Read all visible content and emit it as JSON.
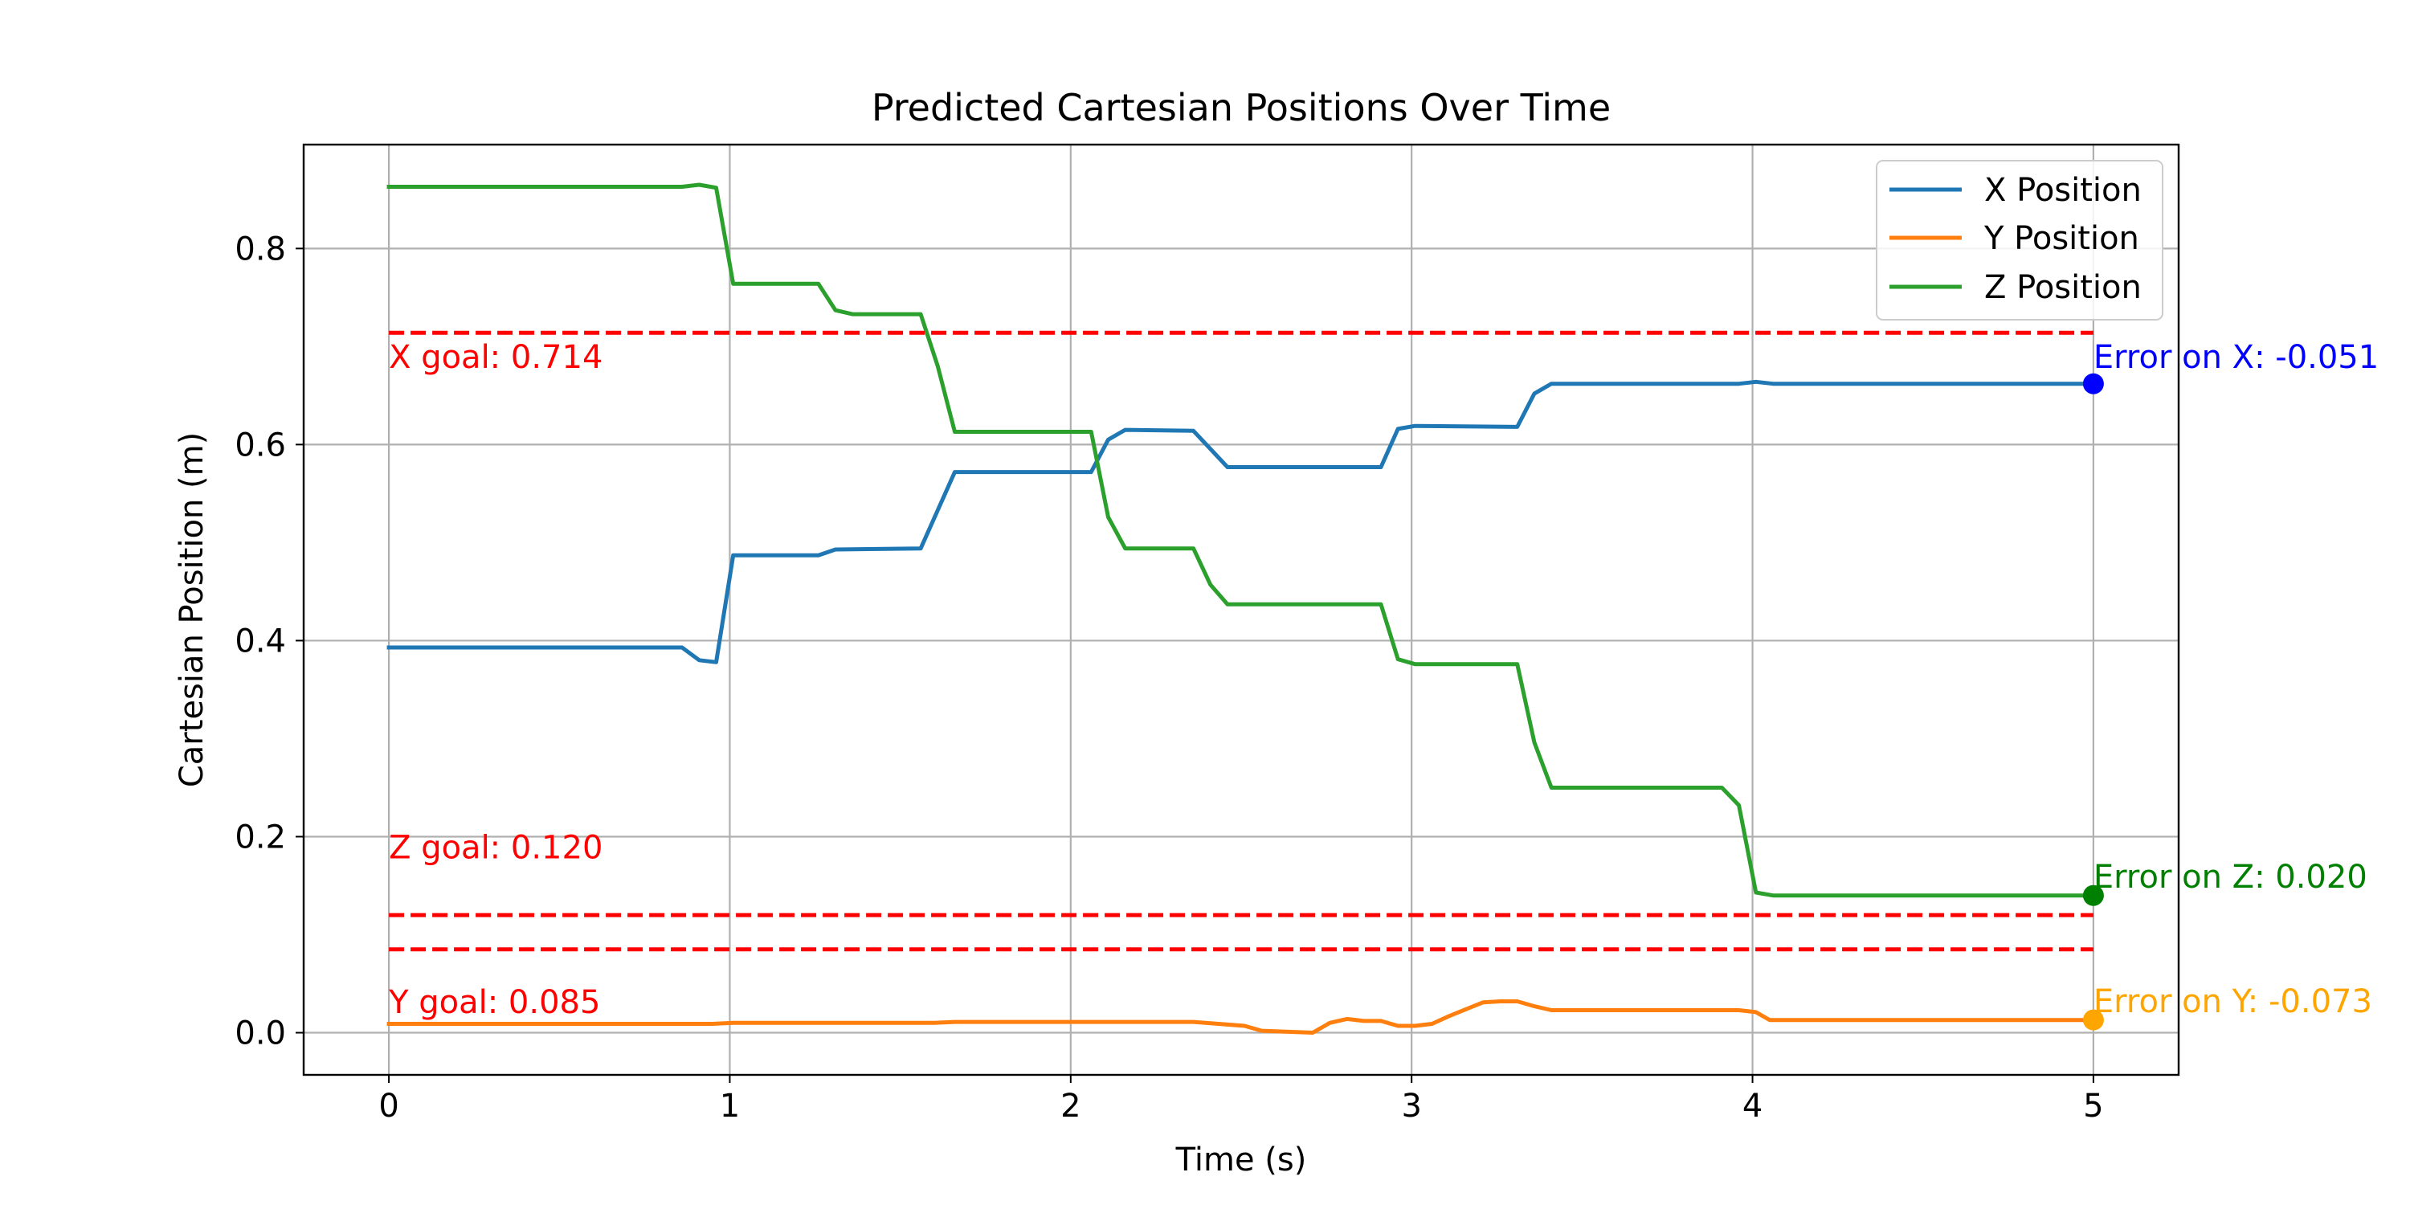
{
  "chart_data": {
    "type": "line",
    "title": "Predicted Cartesian Positions Over Time",
    "xlabel": "Time (s)",
    "ylabel": "Cartesian Position (m)",
    "xlim": [
      -0.25,
      5.25
    ],
    "ylim": [
      -0.043,
      0.906
    ],
    "xticks": [
      0,
      1,
      2,
      3,
      4,
      5
    ],
    "xtick_labels": [
      "0",
      "1",
      "2",
      "3",
      "4",
      "5"
    ],
    "yticks": [
      0.0,
      0.2,
      0.4,
      0.6,
      0.8
    ],
    "ytick_labels": [
      "0.0",
      "0.2",
      "0.4",
      "0.6",
      "0.8"
    ],
    "grid": true,
    "legend_position": "top-right",
    "series": [
      {
        "name": "X Position",
        "color": "#1f77b4",
        "points": [
          [
            0,
            0.393
          ],
          [
            0.86,
            0.393
          ],
          [
            0.91,
            0.38
          ],
          [
            0.96,
            0.378
          ],
          [
            1.01,
            0.487
          ],
          [
            1.26,
            0.487
          ],
          [
            1.31,
            0.493
          ],
          [
            1.56,
            0.494
          ],
          [
            1.66,
            0.572
          ],
          [
            2.06,
            0.572
          ],
          [
            2.11,
            0.605
          ],
          [
            2.16,
            0.615
          ],
          [
            2.36,
            0.614
          ],
          [
            2.46,
            0.577
          ],
          [
            2.91,
            0.577
          ],
          [
            2.96,
            0.616
          ],
          [
            3.01,
            0.619
          ],
          [
            3.31,
            0.618
          ],
          [
            3.36,
            0.652
          ],
          [
            3.41,
            0.662
          ],
          [
            3.96,
            0.662
          ],
          [
            4.01,
            0.664
          ],
          [
            4.06,
            0.662
          ],
          [
            5,
            0.662
          ]
        ]
      },
      {
        "name": "Y Position",
        "color": "#ff7f0e",
        "points": [
          [
            0,
            0.009
          ],
          [
            0.95,
            0.009
          ],
          [
            1.01,
            0.01
          ],
          [
            1.6,
            0.01
          ],
          [
            1.66,
            0.011
          ],
          [
            2.36,
            0.011
          ],
          [
            2.51,
            0.007
          ],
          [
            2.56,
            0.002
          ],
          [
            2.71,
            0.0
          ],
          [
            2.76,
            0.01
          ],
          [
            2.81,
            0.014
          ],
          [
            2.86,
            0.012
          ],
          [
            2.91,
            0.012
          ],
          [
            2.96,
            0.007
          ],
          [
            3.01,
            0.007
          ],
          [
            3.06,
            0.009
          ],
          [
            3.11,
            0.017
          ],
          [
            3.16,
            0.024
          ],
          [
            3.21,
            0.031
          ],
          [
            3.26,
            0.032
          ],
          [
            3.31,
            0.032
          ],
          [
            3.36,
            0.027
          ],
          [
            3.41,
            0.023
          ],
          [
            3.96,
            0.023
          ],
          [
            4.01,
            0.021
          ],
          [
            4.05,
            0.013
          ],
          [
            5,
            0.013
          ]
        ]
      },
      {
        "name": "Z Position",
        "color": "#2ca02c",
        "points": [
          [
            0,
            0.863
          ],
          [
            0.86,
            0.863
          ],
          [
            0.91,
            0.865
          ],
          [
            0.96,
            0.862
          ],
          [
            1.01,
            0.764
          ],
          [
            1.26,
            0.764
          ],
          [
            1.31,
            0.737
          ],
          [
            1.36,
            0.733
          ],
          [
            1.56,
            0.733
          ],
          [
            1.61,
            0.68
          ],
          [
            1.66,
            0.613
          ],
          [
            2.06,
            0.613
          ],
          [
            2.11,
            0.526
          ],
          [
            2.16,
            0.494
          ],
          [
            2.36,
            0.494
          ],
          [
            2.41,
            0.457
          ],
          [
            2.46,
            0.437
          ],
          [
            2.91,
            0.437
          ],
          [
            2.96,
            0.381
          ],
          [
            3.01,
            0.376
          ],
          [
            3.31,
            0.376
          ],
          [
            3.36,
            0.296
          ],
          [
            3.41,
            0.25
          ],
          [
            3.91,
            0.25
          ],
          [
            3.96,
            0.232
          ],
          [
            4.01,
            0.143
          ],
          [
            4.06,
            0.14
          ],
          [
            5,
            0.14
          ]
        ]
      }
    ],
    "goal_lines": [
      {
        "value": 0.714,
        "label": "X goal: 0.714",
        "label_y": 0.678,
        "color": "#ff0000"
      },
      {
        "value": 0.12,
        "label": "Z goal: 0.120",
        "label_y": 0.178,
        "color": "#ff0000"
      },
      {
        "value": 0.085,
        "label": "Y goal: 0.085",
        "label_y": 0.02,
        "color": "#ff0000"
      }
    ],
    "final_markers": [
      {
        "x": 5,
        "y": 0.662,
        "color": "#0000ff",
        "label": "Error on X: -0.051",
        "label_y": 0.678
      },
      {
        "x": 5,
        "y": 0.14,
        "color": "#008000",
        "label": "Error on Z: 0.020",
        "label_y": 0.148
      },
      {
        "x": 5,
        "y": 0.013,
        "color": "#ffa500",
        "label": "Error on Y: -0.073",
        "label_y": 0.021
      }
    ]
  }
}
